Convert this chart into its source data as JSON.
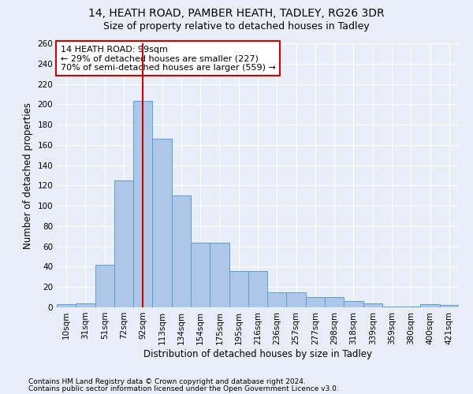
{
  "title1": "14, HEATH ROAD, PAMBER HEATH, TADLEY, RG26 3DR",
  "title2": "Size of property relative to detached houses in Tadley",
  "xlabel": "Distribution of detached houses by size in Tadley",
  "ylabel": "Number of detached properties",
  "footnote1": "Contains HM Land Registry data © Crown copyright and database right 2024.",
  "footnote2": "Contains public sector information licensed under the Open Government Licence v3.0.",
  "categories": [
    "10sqm",
    "31sqm",
    "51sqm",
    "72sqm",
    "92sqm",
    "113sqm",
    "134sqm",
    "154sqm",
    "175sqm",
    "195sqm",
    "216sqm",
    "236sqm",
    "257sqm",
    "277sqm",
    "298sqm",
    "318sqm",
    "339sqm",
    "359sqm",
    "380sqm",
    "400sqm",
    "421sqm"
  ],
  "bar_values": [
    3,
    4,
    42,
    125,
    203,
    166,
    110,
    64,
    64,
    36,
    36,
    15,
    15,
    10,
    10,
    6,
    4,
    1,
    1,
    3,
    2
  ],
  "bar_color": "#aec6e8",
  "bar_edge_color": "#5a9fd4",
  "vline_color": "#cc0000",
  "annotation_text": "14 HEATH ROAD: 99sqm\n← 29% of detached houses are smaller (227)\n70% of semi-detached houses are larger (559) →",
  "annotation_box_color": "#ffffff",
  "annotation_box_edge": "#cc0000",
  "ylim": [
    0,
    260
  ],
  "background_color": "#e8eef8",
  "plot_bg_color": "#e8eef8",
  "grid_color": "#ffffff",
  "title_fontsize": 10,
  "subtitle_fontsize": 9,
  "axis_label_fontsize": 8.5,
  "tick_fontsize": 7.5,
  "annotation_fontsize": 8,
  "footnote_fontsize": 6.5
}
